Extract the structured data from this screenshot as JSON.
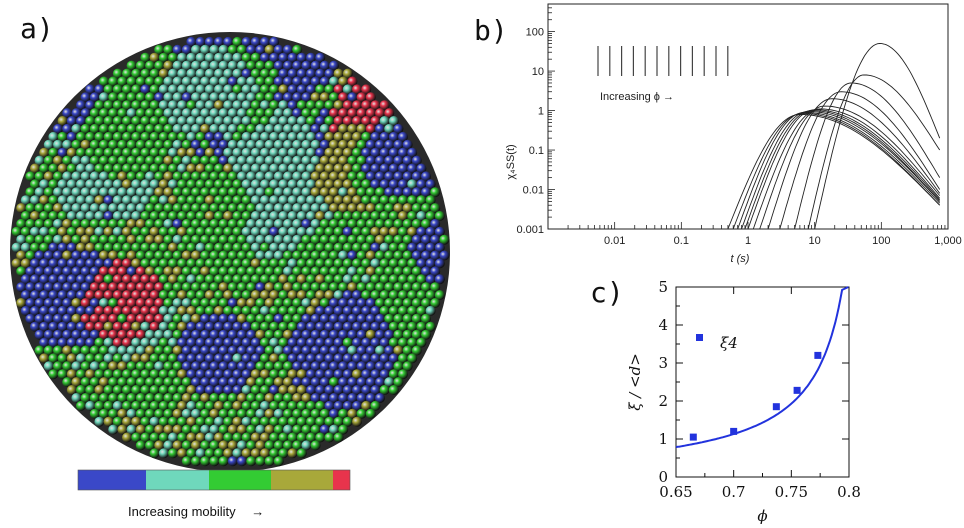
{
  "panel_a": {
    "letter": "a)",
    "mobility_colors": [
      "#3a48c8",
      "#6fd8bc",
      "#33cc33",
      "#a8a83a",
      "#e8344c"
    ],
    "mobility_label": "Increasing mobility",
    "arrow": "→"
  },
  "panel_b": {
    "letter": "b)",
    "annotation": "Increasing ϕ →"
  },
  "panel_c": {
    "letter": "c)",
    "legend_label": "ξ4"
  },
  "chart_data": [
    {
      "type": "line",
      "panel": "b",
      "xlabel": "t (s)",
      "ylabel": "χ₄SS(t)",
      "xscale": "log",
      "yscale": "log",
      "xlim": [
        0.001,
        1000
      ],
      "ylim": [
        0.001,
        500
      ],
      "xticks": [
        "0.01",
        "0.1",
        "1",
        "10",
        "100",
        "1,000"
      ],
      "yticks": [
        "0.001",
        "0.01",
        "0.1",
        "1",
        "10",
        "100"
      ],
      "series": [
        {
          "start": 0.5,
          "peak_t": 6,
          "peak": 0.8,
          "end": 0.004
        },
        {
          "start": 0.6,
          "peak_t": 6.5,
          "peak": 0.85,
          "end": 0.004
        },
        {
          "start": 0.7,
          "peak_t": 7,
          "peak": 0.9,
          "end": 0.0045
        },
        {
          "start": 0.8,
          "peak_t": 8,
          "peak": 0.95,
          "end": 0.005
        },
        {
          "start": 0.9,
          "peak_t": 9,
          "peak": 1.0,
          "end": 0.005
        },
        {
          "start": 1.0,
          "peak_t": 10,
          "peak": 1.05,
          "end": 0.0055
        },
        {
          "start": 1.2,
          "peak_t": 12,
          "peak": 1.1,
          "end": 0.006
        },
        {
          "start": 1.5,
          "peak_t": 14,
          "peak": 1.3,
          "end": 0.007
        },
        {
          "start": 2.0,
          "peak_t": 18,
          "peak": 2.0,
          "end": 0.008
        },
        {
          "start": 3.0,
          "peak_t": 25,
          "peak": 3.0,
          "end": 0.01
        },
        {
          "start": 5.0,
          "peak_t": 35,
          "peak": 5.0,
          "end": 0.02
        },
        {
          "start": 8.0,
          "peak_t": 55,
          "peak": 8.0,
          "end": 0.1
        },
        {
          "start": 10.0,
          "peak_t": 95,
          "peak": 50.0,
          "end": 0.2
        }
      ]
    },
    {
      "type": "scatter",
      "panel": "c",
      "xlabel": "ϕ",
      "ylabel": "ξ / <d>",
      "xlim": [
        0.65,
        0.8
      ],
      "ylim": [
        0,
        5
      ],
      "xticks": [
        "0.65",
        "0.7",
        "0.75",
        "0.8"
      ],
      "yticks": [
        "0",
        "1",
        "2",
        "3",
        "4",
        "5"
      ],
      "series": [
        {
          "name": "ξ4",
          "x": [
            0.665,
            0.7,
            0.737,
            0.755,
            0.773
          ],
          "y": [
            1.05,
            1.2,
            1.85,
            2.28,
            3.2
          ]
        }
      ],
      "fit_curve": true,
      "color": "#2233dd"
    }
  ]
}
